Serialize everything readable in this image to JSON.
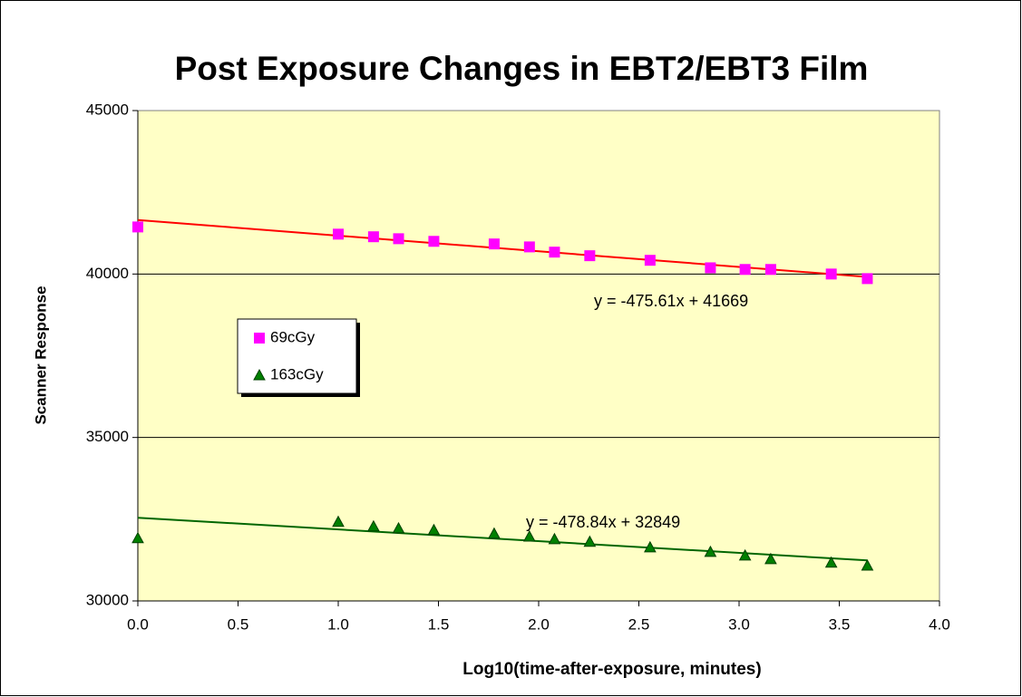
{
  "chart_data": {
    "type": "scatter",
    "title": "Post Exposure Changes in EBT2/EBT3 Film",
    "x_label": "Log10(time-after-exposure, minutes)",
    "y_label": "Scanner Response",
    "xlim": [
      0,
      4
    ],
    "xticks": [
      {
        "value": 0,
        "label": "0.0"
      },
      {
        "value": 0.5,
        "label": "0.5"
      },
      {
        "value": 1,
        "label": "1.0"
      },
      {
        "value": 1.5,
        "label": "1.5"
      },
      {
        "value": 2,
        "label": "2.0"
      },
      {
        "value": 2.5,
        "label": "2.5"
      },
      {
        "value": 3,
        "label": "3.0"
      },
      {
        "value": 3.5,
        "label": "3.5"
      },
      {
        "value": 4,
        "label": "4.0"
      }
    ],
    "ylim": [
      30000,
      45000
    ],
    "yticks": [
      30000,
      35000,
      40000,
      45000
    ],
    "grid": true,
    "background": "#ffffc6",
    "legend": "left",
    "series": [
      {
        "name": "69cGy",
        "color": "#ff00ff",
        "marker": "square",
        "trend_color": "#ff0000",
        "x": [
          0,
          1.0,
          1.176,
          1.301,
          1.477,
          1.778,
          1.954,
          2.079,
          2.255,
          2.556,
          2.857,
          3.03,
          3.158,
          3.46,
          3.64
        ],
        "values": [
          41440,
          41220,
          41140,
          41080,
          41000,
          40920,
          40830,
          40670,
          40560,
          40420,
          40190,
          40140,
          40140,
          40000,
          39860
        ],
        "equation": "y = -475.61x + 41669"
      },
      {
        "name": "163cGy",
        "color": "#008000",
        "marker": "triangle",
        "trend_color": "#006600",
        "x": [
          0,
          1.0,
          1.176,
          1.301,
          1.477,
          1.778,
          1.954,
          2.079,
          2.255,
          2.556,
          2.857,
          3.03,
          3.158,
          3.46,
          3.64
        ],
        "values": [
          31920,
          32420,
          32280,
          32220,
          32170,
          32060,
          31970,
          31890,
          31810,
          31640,
          31500,
          31390,
          31280,
          31170,
          31080
        ],
        "equation": "y = -478.84x + 32849"
      }
    ]
  }
}
